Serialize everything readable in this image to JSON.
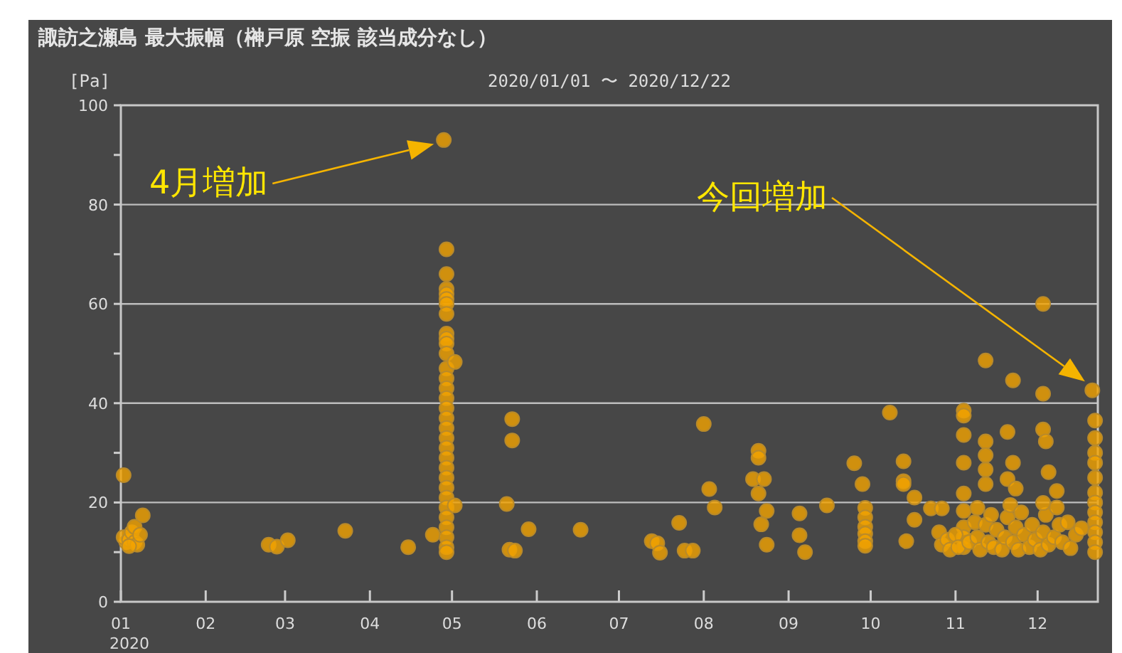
{
  "chart_data": {
    "type": "scatter",
    "title": "諏訪之瀬島 最大振幅（榊戸原 空振 該当成分なし）",
    "subtitle": "2020/01/01 〜 2020/12/22",
    "ylabel": "[Pa]",
    "marker": "circle",
    "grid": "y",
    "color": "#f2a300",
    "xlim": [
      "2020-01-01",
      "2020-12-23"
    ],
    "ylim": [
      0,
      100
    ],
    "xticks": [
      {
        "value": "2020-01-01",
        "label": "01\n2020"
      },
      {
        "value": "2020-02-01",
        "label": "02"
      },
      {
        "value": "2020-03-01",
        "label": "03"
      },
      {
        "value": "2020-04-01",
        "label": "04"
      },
      {
        "value": "2020-05-01",
        "label": "05"
      },
      {
        "value": "2020-06-01",
        "label": "06"
      },
      {
        "value": "2020-07-01",
        "label": "07"
      },
      {
        "value": "2020-08-01",
        "label": "08"
      },
      {
        "value": "2020-09-01",
        "label": "09"
      },
      {
        "value": "2020-10-01",
        "label": "10"
      },
      {
        "value": "2020-11-01",
        "label": "11"
      },
      {
        "value": "2020-12-01",
        "label": "12"
      }
    ],
    "yticks": [
      0,
      {
        "value": 10,
        "label": null
      },
      20,
      {
        "value": 30,
        "label": null
      },
      40,
      {
        "value": 50,
        "label": null
      },
      60,
      {
        "value": 70,
        "label": null
      },
      80,
      {
        "value": 90,
        "label": null
      },
      100
    ],
    "annotations": [
      "4月増加",
      "今回増加"
    ],
    "x": [
      "2020-01-02",
      "2020-01-03",
      "2020-01-02",
      "2020-01-04",
      "2020-01-05",
      "2020-01-06",
      "2020-01-06",
      "2020-01-07",
      "2020-01-09",
      "2020-01-04",
      "2020-01-08",
      "2020-02-24",
      "2020-02-27",
      "2020-03-02",
      "2020-03-23",
      "2020-04-15",
      "2020-04-24",
      "2020-04-28",
      "2020-04-29",
      "2020-04-29",
      "2020-04-29",
      "2020-04-29",
      "2020-04-29",
      "2020-04-29",
      "2020-04-29",
      "2020-04-29",
      "2020-04-29",
      "2020-04-29",
      "2020-04-29",
      "2020-04-29",
      "2020-04-29",
      "2020-04-29",
      "2020-04-29",
      "2020-04-29",
      "2020-04-29",
      "2020-04-29",
      "2020-04-29",
      "2020-04-29",
      "2020-04-29",
      "2020-04-29",
      "2020-04-29",
      "2020-04-29",
      "2020-04-29",
      "2020-04-29",
      "2020-04-29",
      "2020-04-29",
      "2020-04-29",
      "2020-04-29",
      "2020-04-29",
      "2020-05-02",
      "2020-05-02",
      "2020-05-21",
      "2020-05-23",
      "2020-05-23",
      "2020-05-22",
      "2020-05-24",
      "2020-05-29",
      "2020-06-17",
      "2020-07-13",
      "2020-07-15",
      "2020-07-16",
      "2020-07-23",
      "2020-07-25",
      "2020-07-28",
      "2020-08-01",
      "2020-08-03",
      "2020-08-05",
      "2020-08-21",
      "2020-08-21",
      "2020-08-19",
      "2020-08-23",
      "2020-08-21",
      "2020-08-24",
      "2020-08-22",
      "2020-08-24",
      "2020-09-05",
      "2020-09-05",
      "2020-09-07",
      "2020-09-15",
      "2020-09-25",
      "2020-09-28",
      "2020-09-29",
      "2020-09-29",
      "2020-09-29",
      "2020-09-29",
      "2020-09-29",
      "2020-09-29",
      "2020-10-08",
      "2020-10-13",
      "2020-10-13",
      "2020-10-13",
      "2020-10-17",
      "2020-10-17",
      "2020-10-14",
      "2020-10-23",
      "2020-10-27",
      "2020-11-04",
      "2020-11-04",
      "2020-11-04",
      "2020-11-04",
      "2020-11-04",
      "2020-11-04",
      "2020-11-04",
      "2020-11-04",
      "2020-11-04",
      "2020-10-26",
      "2020-10-27",
      "2020-10-29",
      "2020-10-30",
      "2020-11-01",
      "2020-11-02",
      "2020-11-06",
      "2020-11-08",
      "2020-11-09",
      "2020-11-10",
      "2020-11-12",
      "2020-11-13",
      "2020-11-14",
      "2020-11-15",
      "2020-11-16",
      "2020-11-18",
      "2020-11-19",
      "2020-11-20",
      "2020-11-21",
      "2020-11-22",
      "2020-11-23",
      "2020-11-24",
      "2020-11-25",
      "2020-11-26",
      "2020-11-28",
      "2020-11-29",
      "2020-11-30",
      "2020-12-02",
      "2020-12-03",
      "2020-12-04",
      "2020-12-05",
      "2020-12-07",
      "2020-12-08",
      "2020-12-09",
      "2020-12-10",
      "2020-12-12",
      "2020-12-13",
      "2020-12-15",
      "2020-12-17",
      "2020-11-12",
      "2020-11-12",
      "2020-11-12",
      "2020-11-12",
      "2020-11-12",
      "2020-11-09",
      "2020-11-22",
      "2020-11-20",
      "2020-11-22",
      "2020-11-20",
      "2020-11-23",
      "2020-12-03",
      "2020-12-03",
      "2020-12-03",
      "2020-12-04",
      "2020-12-05",
      "2020-12-03",
      "2020-12-08",
      "2020-12-21",
      "2020-12-22",
      "2020-12-22",
      "2020-12-22",
      "2020-12-22",
      "2020-12-22",
      "2020-12-22",
      "2020-12-22",
      "2020-12-22",
      "2020-12-22",
      "2020-12-22",
      "2020-12-22",
      "2020-12-22"
    ],
    "values": [
      25.5,
      12,
      13,
      12.5,
      14,
      12,
      15.1,
      11.5,
      17.4,
      11.2,
      13.5,
      11.5,
      11.1,
      12.4,
      14.3,
      11.0,
      13.5,
      93.0,
      71,
      66,
      63,
      62,
      61,
      60,
      58,
      54,
      53,
      52,
      50,
      47,
      45,
      43,
      41,
      39,
      37,
      35,
      33,
      31,
      29,
      27,
      25,
      23,
      21,
      19,
      17,
      15,
      13,
      11,
      10,
      48.3,
      19.4,
      19.7,
      36.8,
      32.5,
      10.5,
      10.3,
      14.6,
      14.5,
      12.2,
      11.8,
      9.9,
      15.9,
      10.3,
      10.3,
      35.8,
      22.7,
      19.0,
      30.4,
      29.0,
      24.7,
      24.7,
      21.8,
      18.3,
      15.6,
      11.5,
      17.8,
      13.4,
      10.0,
      19.4,
      27.9,
      23.7,
      18.9,
      17.0,
      15.1,
      13.7,
      12.2,
      11.3,
      38.1,
      28.3,
      24.3,
      23.7,
      21.0,
      16.5,
      12.2,
      18.8,
      18.8,
      38.5,
      37.5,
      33.6,
      28.0,
      21.8,
      18.3,
      15,
      13,
      11,
      14.0,
      11.5,
      12.5,
      10.5,
      13.5,
      11.0,
      12.0,
      16.0,
      13.0,
      10.5,
      15.5,
      12.0,
      17.5,
      11.0,
      14.5,
      10.5,
      13.0,
      17.0,
      19.5,
      12.0,
      15.0,
      10.5,
      18.0,
      13.5,
      11.0,
      15.5,
      12.5,
      10.5,
      14.0,
      17.5,
      11.5,
      13.0,
      19.0,
      15.5,
      12.0,
      16.0,
      10.8,
      13.5,
      14.8,
      48.6,
      32.3,
      29.5,
      26.6,
      23.7,
      18.9,
      44.6,
      34.2,
      28.0,
      24.7,
      22.8,
      60.0,
      41.9,
      34.7,
      32.3,
      26.1,
      19.9,
      22.3,
      42.6,
      36.5,
      33,
      30,
      28,
      25,
      22,
      20,
      18,
      16,
      14,
      12,
      10
    ]
  }
}
